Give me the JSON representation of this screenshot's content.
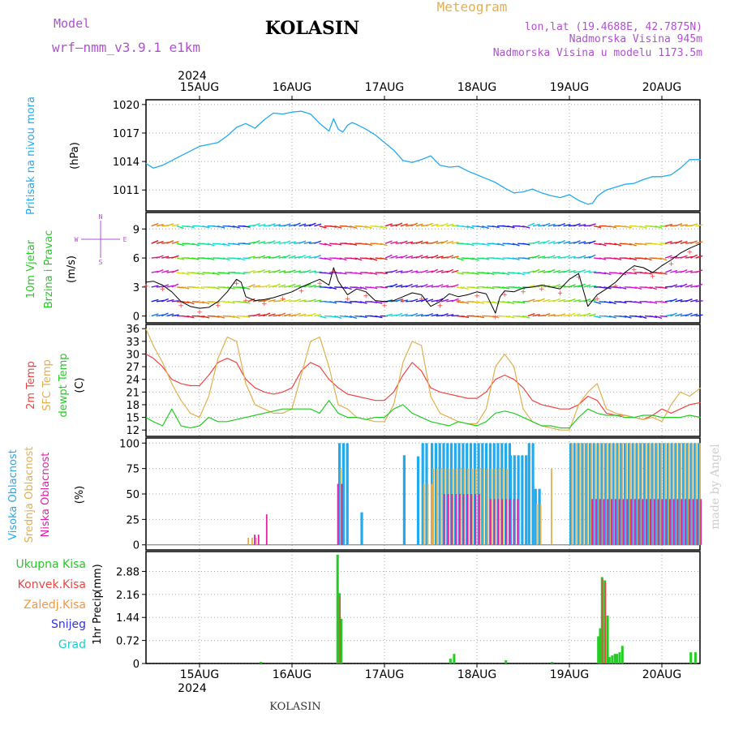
{
  "header": {
    "model_label": "Model",
    "model_name": "wrf–nmm_v3.9.1  e1km",
    "station": "KOLASIN",
    "product": "Meteogram",
    "coords": "lon,lat (19.4688E, 42.7875N)",
    "elevation": "Nadmorska Visina 945m",
    "model_elevation": "Nadmorska Visina u modelu 1173.5m",
    "footer_station": "KOLASIN",
    "watermark": "made by Angel",
    "year": "2024",
    "year_bottom": "2024"
  },
  "colors": {
    "purple": "#b050d0",
    "tan": "#e0b050",
    "pressure": "#22aaee",
    "blue_label": "#22aaee",
    "green_label": "#22cc22",
    "red": "#ee4444",
    "orange": "#ee9944",
    "magenta": "#dd22aa",
    "blue": "#3333dd",
    "cyan": "#22cccc",
    "grid": "#aaaaaa"
  },
  "chart_data": [
    {
      "type": "line",
      "panel": "pressure",
      "ylabel": "Pritisak na nivou mora",
      "unit": "(hPa)",
      "yticks": [
        1011,
        1014,
        1017,
        1020
      ],
      "ylim": [
        1008.8,
        1020.5
      ],
      "x_unit": "days from 15AUG 00 UTC",
      "x_ticks": [
        "15AUG",
        "16AUG",
        "17AUG",
        "18AUG",
        "19AUG",
        "20AUG"
      ],
      "x": [
        -0.58,
        -0.5,
        -0.4,
        -0.2,
        0,
        0.2,
        0.3,
        0.4,
        0.5,
        0.6,
        0.7,
        0.8,
        0.9,
        1.0,
        1.1,
        1.2,
        1.3,
        1.4,
        1.45,
        1.5,
        1.55,
        1.6,
        1.65,
        1.7,
        1.8,
        1.9,
        2.0,
        2.1,
        2.2,
        2.3,
        2.4,
        2.5,
        2.55,
        2.6,
        2.7,
        2.8,
        2.9,
        3.0,
        3.1,
        3.2,
        3.3,
        3.4,
        3.5,
        3.6,
        3.7,
        3.8,
        3.9,
        4.0,
        4.1,
        4.2,
        4.25,
        4.3,
        4.35,
        4.4,
        4.5,
        4.6,
        4.7,
        4.8,
        4.9,
        5.0,
        5.1,
        5.2,
        5.3,
        5.42
      ],
      "series": [
        {
          "name": "",
          "values": [
            1013.8,
            1013.3,
            1013.6,
            1014.6,
            1015.6,
            1016.0,
            1016.7,
            1017.6,
            1018.0,
            1017.5,
            1018.4,
            1019.1,
            1019.0,
            1019.2,
            1019.3,
            1019.0,
            1018.0,
            1017.2,
            1018.5,
            1017.4,
            1017.1,
            1017.8,
            1018.1,
            1017.9,
            1017.4,
            1016.8,
            1016.0,
            1015.2,
            1014.1,
            1013.9,
            1014.2,
            1014.6,
            1014.1,
            1013.6,
            1013.4,
            1013.5,
            1013.0,
            1012.6,
            1012.2,
            1011.8,
            1011.2,
            1010.7,
            1010.8,
            1011.1,
            1010.7,
            1010.4,
            1010.2,
            1010.5,
            1009.9,
            1009.5,
            1009.6,
            1010.3,
            1010.7,
            1011.0,
            1011.3,
            1011.6,
            1011.7,
            1012.1,
            1012.4,
            1012.4,
            1012.6,
            1013.3,
            1014.2,
            1014.2
          ]
        }
      ]
    },
    {
      "type": "line",
      "panel": "wind",
      "ylabel": [
        "10m Vjetar",
        "Brzina i Pravac"
      ],
      "unit": "(m/s)",
      "yticks": [
        0,
        3,
        6,
        9
      ],
      "ylim": [
        -0.7,
        10.7
      ],
      "compass": [
        "N",
        "E",
        "S",
        "W"
      ],
      "x": [
        -0.58,
        -0.5,
        -0.4,
        -0.3,
        -0.2,
        -0.1,
        0,
        0.1,
        0.2,
        0.3,
        0.4,
        0.45,
        0.5,
        0.6,
        0.7,
        0.8,
        0.9,
        1.0,
        1.1,
        1.2,
        1.3,
        1.4,
        1.45,
        1.5,
        1.6,
        1.7,
        1.8,
        1.9,
        2.0,
        2.1,
        2.2,
        2.3,
        2.4,
        2.5,
        2.6,
        2.7,
        2.8,
        2.9,
        3.0,
        3.1,
        3.2,
        3.25,
        3.3,
        3.4,
        3.5,
        3.6,
        3.7,
        3.8,
        3.9,
        4.0,
        4.1,
        4.2,
        4.3,
        4.4,
        4.5,
        4.6,
        4.7,
        4.8,
        4.9,
        5.0,
        5.1,
        5.2,
        5.3,
        5.42
      ],
      "series": [
        {
          "name": "",
          "values": [
            3.5,
            3.6,
            3.2,
            2.5,
            1.5,
            1.0,
            0.8,
            0.9,
            1.5,
            2.5,
            3.8,
            3.5,
            2.0,
            1.6,
            1.7,
            1.9,
            2.2,
            2.5,
            3.0,
            3.4,
            3.8,
            3.2,
            5.0,
            3.6,
            2.2,
            2.8,
            2.5,
            1.6,
            1.5,
            1.6,
            2.0,
            2.4,
            2.2,
            1.0,
            1.5,
            2.3,
            2.0,
            2.2,
            2.5,
            2.3,
            0.3,
            2.0,
            2.6,
            2.5,
            2.9,
            3.0,
            3.2,
            3.0,
            2.8,
            3.8,
            4.4,
            1.0,
            2.2,
            2.8,
            3.5,
            4.5,
            5.2,
            5.0,
            4.5,
            5.2,
            5.8,
            6.5,
            7.0,
            7.5
          ]
        }
      ]
    },
    {
      "type": "line",
      "panel": "temperature",
      "ylabel": [
        "2m Temp",
        "SFC Temp",
        "dewpt Temp"
      ],
      "unit": "(C)",
      "yticks": [
        12,
        15,
        18,
        21,
        24,
        27,
        30,
        33,
        36
      ],
      "ylim": [
        10.5,
        37
      ],
      "x": [
        -0.58,
        -0.5,
        -0.4,
        -0.3,
        -0.2,
        -0.1,
        0,
        0.1,
        0.2,
        0.3,
        0.4,
        0.5,
        0.6,
        0.7,
        0.8,
        0.9,
        1.0,
        1.1,
        1.2,
        1.3,
        1.4,
        1.5,
        1.6,
        1.7,
        1.8,
        1.9,
        2.0,
        2.1,
        2.2,
        2.3,
        2.4,
        2.5,
        2.6,
        2.7,
        2.8,
        2.9,
        3.0,
        3.1,
        3.2,
        3.3,
        3.4,
        3.5,
        3.6,
        3.7,
        3.8,
        3.9,
        4.0,
        4.1,
        4.2,
        4.3,
        4.4,
        4.5,
        4.6,
        4.7,
        4.8,
        4.9,
        5.0,
        5.1,
        5.2,
        5.3,
        5.42
      ],
      "series": [
        {
          "name": "2m Temp",
          "values": [
            30,
            29,
            27,
            24,
            23,
            22.5,
            22.5,
            25,
            28,
            29,
            28,
            24,
            22,
            21,
            20.5,
            21,
            22,
            26,
            28,
            27,
            24,
            22,
            20.5,
            20,
            19.5,
            19,
            19,
            21,
            25,
            28,
            26,
            22,
            21,
            20.5,
            20,
            19.5,
            19.5,
            21,
            24,
            25,
            24,
            22,
            19,
            18,
            17.5,
            17,
            17,
            18,
            20,
            19,
            16,
            15.5,
            15.5,
            15,
            14.5,
            15.5,
            17,
            16,
            17,
            18,
            18.5
          ]
        },
        {
          "name": "SFC Temp",
          "values": [
            36,
            32,
            28,
            23,
            19,
            16,
            15,
            20,
            29,
            34,
            33,
            23,
            18,
            17,
            16,
            16,
            17,
            25,
            33,
            34,
            27,
            18,
            17,
            15,
            14.5,
            14,
            14,
            18,
            28,
            33,
            32,
            20,
            16,
            15,
            14,
            13.5,
            13.5,
            17,
            27,
            30,
            27,
            17,
            14,
            13,
            12.5,
            12,
            12,
            18,
            21,
            23,
            17,
            16,
            15.5,
            15,
            14.5,
            15,
            14,
            18,
            21,
            20,
            22
          ]
        },
        {
          "name": "dewpt Temp",
          "values": [
            15,
            14,
            13,
            17,
            13,
            12.5,
            13,
            15,
            14,
            14,
            14.5,
            15,
            15.5,
            16,
            16.5,
            17,
            17,
            17,
            17,
            16,
            19,
            16,
            15,
            15,
            14.5,
            15,
            15,
            17,
            18,
            16,
            15,
            14,
            13.5,
            13,
            14,
            13.5,
            13,
            14,
            16,
            16.5,
            16,
            15,
            14,
            13,
            13,
            12.5,
            12.5,
            15,
            17,
            16,
            15.5,
            15.5,
            15,
            15,
            15.5,
            15.5,
            15,
            15,
            15,
            15.5,
            15
          ]
        }
      ]
    },
    {
      "type": "bar",
      "panel": "cloud",
      "ylabel": [
        "Visoka Oblacnost",
        "Srednja Oblacnost",
        "Niska Oblacnost"
      ],
      "unit": "(%)",
      "yticks": [
        0,
        25,
        50,
        75,
        100
      ],
      "ylim": [
        -5,
        105
      ],
      "series": [
        {
          "name": "Visoka Oblacnost",
          "segments": [
            [
              1.5,
              1.6,
              100
            ],
            [
              1.74,
              1.74,
              32
            ],
            [
              2.2,
              2.2,
              88
            ],
            [
              2.35,
              2.35,
              87
            ],
            [
              2.4,
              2.48,
              100
            ],
            [
              2.5,
              3.35,
              100
            ],
            [
              3.35,
              3.55,
              88
            ],
            [
              3.55,
              3.62,
              100
            ],
            [
              3.62,
              3.7,
              55
            ],
            [
              4.0,
              5.42,
              100
            ]
          ]
        },
        {
          "name": "Srednja Oblacnost",
          "segments": [
            [
              0.5,
              0.6,
              7
            ],
            [
              1.5,
              1.52,
              75
            ],
            [
              2.4,
              2.5,
              60
            ],
            [
              2.5,
              3.3,
              75
            ],
            [
              3.62,
              3.68,
              40
            ],
            [
              3.78,
              3.78,
              75
            ],
            [
              4.0,
              5.42,
              100
            ]
          ]
        },
        {
          "name": "Niska Oblacnost",
          "segments": [
            [
              0.55,
              0.6,
              10
            ],
            [
              0.68,
              0.72,
              30
            ],
            [
              1.45,
              1.5,
              60
            ],
            [
              2.6,
              3.0,
              50
            ],
            [
              3.1,
              3.4,
              45
            ],
            [
              4.2,
              5.4,
              45
            ]
          ]
        }
      ]
    },
    {
      "type": "bar",
      "panel": "precip",
      "ylabel": "1hr Precip",
      "unit": "(mm)",
      "yticks": [
        0,
        0.72,
        1.44,
        2.16,
        2.88
      ],
      "ylim": [
        0,
        3.5
      ],
      "legend": [
        "Ukupna Kisa",
        "Konvek.Kisa",
        "Zaledj.Kisa",
        "Snijeg",
        "Grad"
      ],
      "series": [
        {
          "name": "Ukupna Kisa",
          "x": [
            0.65,
            1.48,
            1.5,
            1.52,
            2.7,
            2.74,
            3.3,
            3.8,
            4.3,
            4.32,
            4.34,
            4.37,
            4.4,
            4.42,
            4.45,
            4.48,
            4.5,
            4.53,
            4.56,
            5.3,
            5.35
          ],
          "values": [
            0.05,
            3.4,
            2.2,
            1.4,
            0.15,
            0.3,
            0.1,
            0.05,
            0.85,
            1.1,
            2.7,
            2.6,
            1.5,
            0.2,
            0.25,
            0.3,
            0.3,
            0.35,
            0.55,
            0.35,
            0.35
          ]
        },
        {
          "name": "Konvek.Kisa",
          "x": [
            1.5,
            4.34,
            4.37
          ],
          "values": [
            2.1,
            2.65,
            2.55
          ]
        }
      ]
    }
  ]
}
